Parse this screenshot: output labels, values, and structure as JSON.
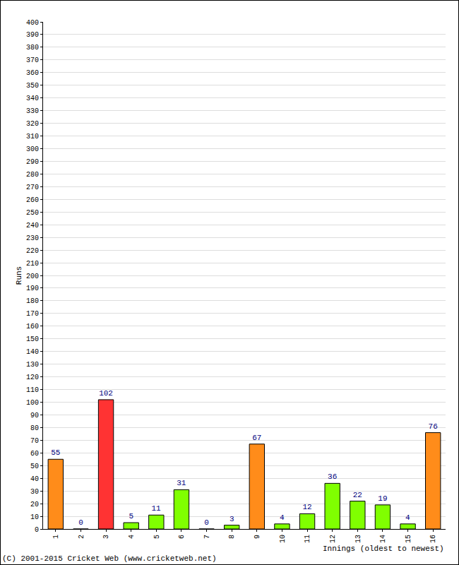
{
  "chart_data": {
    "type": "bar",
    "xlabel": "Innings (oldest to newest)",
    "ylabel": "Runs",
    "annotations": [
      "(C) 2001-2015 Cricket Web (www.cricketweb.net)"
    ],
    "categories": [
      "1",
      "2",
      "3",
      "4",
      "5",
      "6",
      "7",
      "8",
      "9",
      "10",
      "11",
      "12",
      "13",
      "14",
      "15",
      "16"
    ],
    "values": [
      55,
      0,
      102,
      5,
      11,
      31,
      0,
      3,
      67,
      4,
      12,
      36,
      22,
      19,
      4,
      76
    ],
    "colors": [
      "#ff8c1a",
      "#80ff00",
      "#ff3333",
      "#80ff00",
      "#80ff00",
      "#80ff00",
      "#80ff00",
      "#80ff00",
      "#ff8c1a",
      "#80ff00",
      "#80ff00",
      "#80ff00",
      "#80ff00",
      "#80ff00",
      "#80ff00",
      "#ff8c1a"
    ],
    "ylim": [
      0,
      400
    ],
    "yticks": [
      0,
      10,
      20,
      30,
      40,
      50,
      60,
      70,
      80,
      90,
      100,
      110,
      120,
      130,
      140,
      150,
      160,
      170,
      180,
      190,
      200,
      210,
      220,
      230,
      240,
      250,
      260,
      270,
      280,
      290,
      300,
      310,
      320,
      330,
      340,
      350,
      360,
      370,
      380,
      390,
      400
    ],
    "grid": true,
    "data_labels": true
  }
}
